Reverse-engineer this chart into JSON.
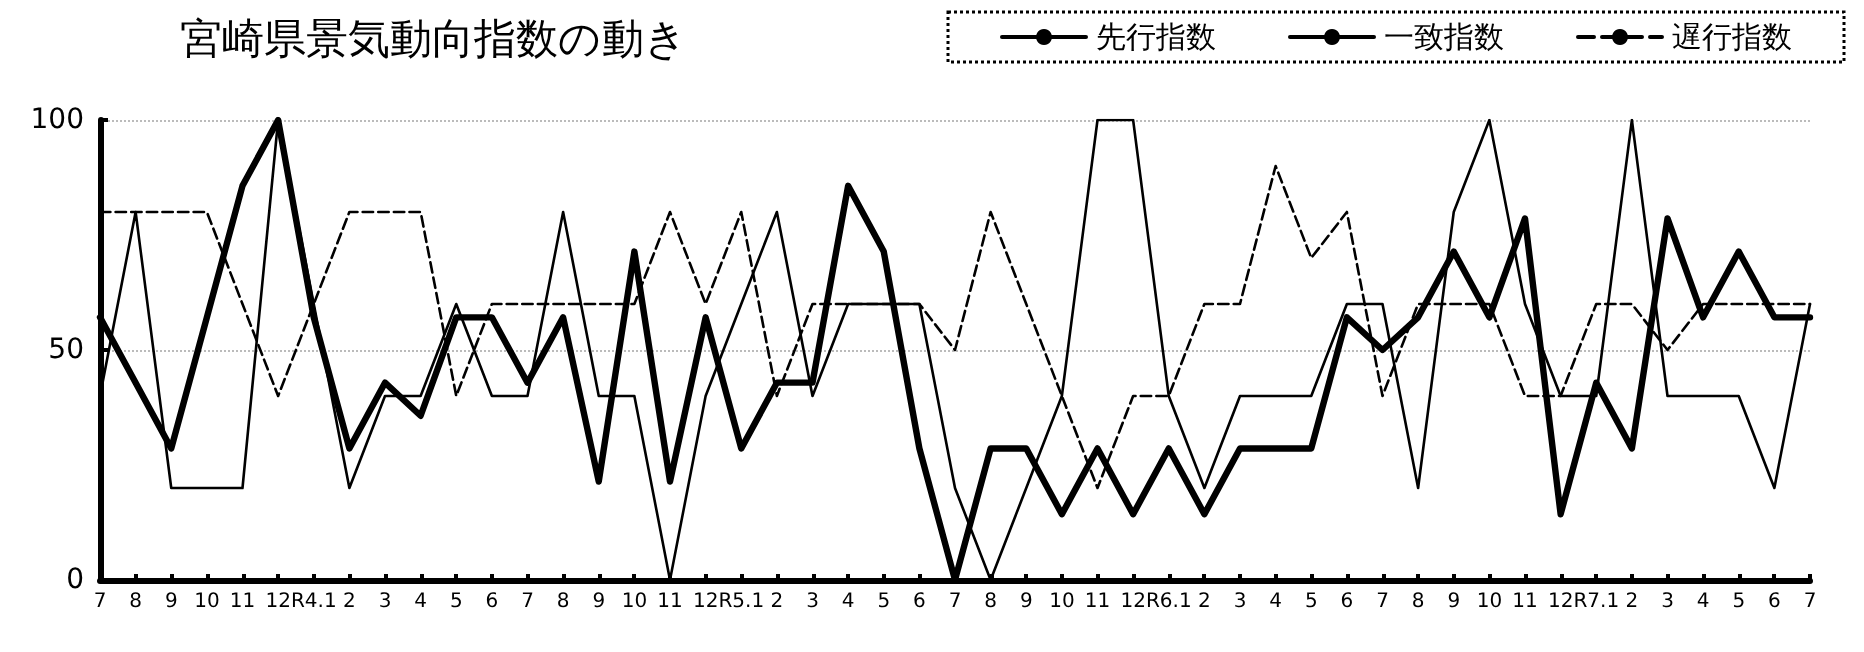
{
  "chart_data": {
    "type": "line",
    "title": "宮崎県景気動向指数の動き",
    "categories": [
      "7",
      "8",
      "9",
      "10",
      "11",
      "12",
      "R4.1",
      "2",
      "3",
      "4",
      "5",
      "6",
      "7",
      "8",
      "9",
      "10",
      "11",
      "12",
      "R5.1",
      "2",
      "3",
      "4",
      "5",
      "6",
      "7",
      "8",
      "9",
      "10",
      "11",
      "12",
      "R6.1",
      "2",
      "3",
      "4",
      "5",
      "6",
      "7",
      "8",
      "9",
      "10",
      "11",
      "12",
      "R7.1",
      "2",
      "3",
      "4",
      "5",
      "6",
      "7"
    ],
    "series": [
      {
        "name": "先行指数",
        "color": "#000000",
        "line_style": "solid",
        "values": [
          40,
          80,
          20,
          20,
          20,
          100,
          60,
          20,
          40,
          40,
          60,
          40,
          40,
          80,
          40,
          40,
          0,
          40,
          60,
          80,
          40,
          60,
          60,
          60,
          20,
          0,
          20,
          40,
          100,
          100,
          40,
          20,
          40,
          40,
          40,
          60,
          60,
          20,
          80,
          100,
          60,
          40,
          40,
          100,
          40,
          40,
          40,
          20,
          60
        ]
      },
      {
        "name": "一致指数",
        "color": "#000000",
        "line_style": "solid",
        "values": [
          57.1,
          42.9,
          28.6,
          57.1,
          85.7,
          100,
          57.1,
          28.6,
          42.9,
          35.7,
          57.1,
          57.1,
          42.9,
          57.1,
          21.4,
          71.4,
          21.4,
          57.1,
          28.6,
          42.9,
          42.9,
          85.7,
          71.4,
          28.6,
          0,
          28.6,
          28.6,
          14.3,
          28.6,
          14.3,
          28.6,
          14.3,
          28.6,
          28.6,
          28.6,
          57.1,
          50,
          57.1,
          71.4,
          57.1,
          78.6,
          14.3,
          42.9,
          28.6,
          78.6,
          57.1,
          71.4,
          57.1,
          57.1
        ]
      },
      {
        "name": "遅行指数",
        "color": "#000000",
        "line_style": "dashed",
        "values": [
          80,
          80,
          80,
          80,
          60,
          40,
          60,
          80,
          80,
          80,
          40,
          60,
          60,
          60,
          60,
          60,
          80,
          60,
          80,
          40,
          60,
          60,
          60,
          60,
          50,
          80,
          60,
          40,
          20,
          40,
          40,
          60,
          60,
          90,
          70,
          80,
          40,
          60,
          60,
          60,
          40,
          40,
          60,
          60,
          50,
          60,
          60,
          60,
          60
        ]
      }
    ],
    "ylim": [
      0,
      100
    ],
    "yticks": [
      0,
      50,
      100
    ],
    "grid": "y",
    "legend": "top right",
    "marker": "none"
  }
}
